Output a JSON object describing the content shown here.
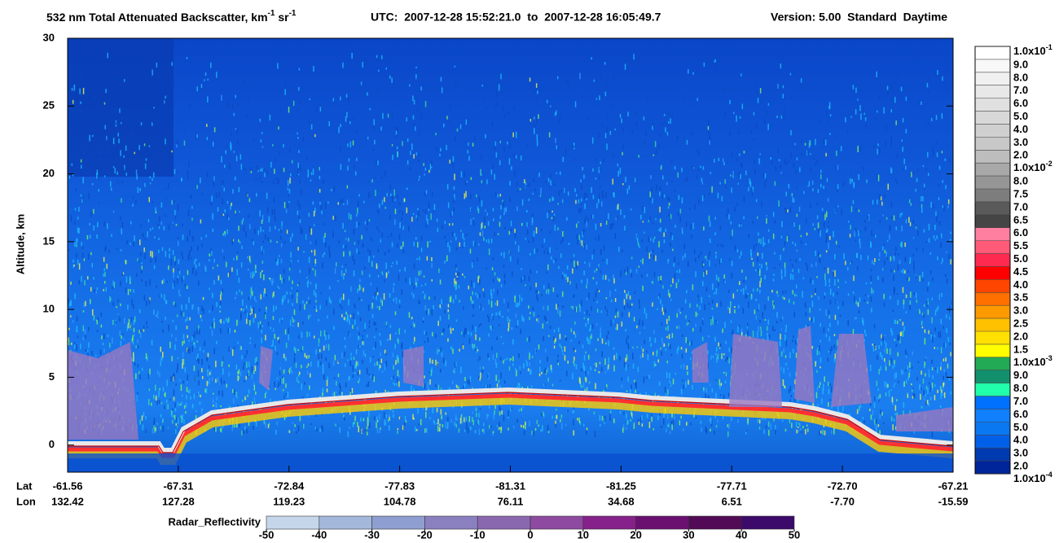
{
  "chart_data": {
    "type": "curtain",
    "title": [
      "532 nm Total Attenuated Backscatter, km",
      "-1",
      " sr",
      "-1"
    ],
    "time_range": "UTC:  2007-12-28 15:52:21.0  to  2007-12-28 16:05:49.7",
    "version": "Version: 5.00  Standard  Daytime",
    "ylabel": "Altitude, km",
    "ylim": [
      -2,
      30
    ],
    "yticks": [
      0,
      5,
      10,
      15,
      20,
      25,
      30
    ],
    "row_labels": [
      "Lat",
      "Lon"
    ],
    "lat": [
      "-61.56",
      "-67.31",
      "-72.84",
      "-77.83",
      "-81.31",
      "-81.25",
      "-77.71",
      "-72.70",
      "-67.21"
    ],
    "lon": [
      "132.42",
      "127.28",
      "119.23",
      "104.78",
      "76.11",
      "34.68",
      "6.51",
      "-7.70",
      "-15.59"
    ],
    "colorbar": {
      "labels": [
        {
          "base": "1.0x10",
          "exp": "-1"
        },
        "9.0",
        "8.0",
        "7.0",
        "6.0",
        "5.0",
        "4.0",
        "3.0",
        "2.0",
        {
          "base": "1.0x10",
          "exp": "-2"
        },
        "8.0",
        "7.5",
        "7.0",
        "6.5",
        "6.0",
        "5.5",
        "5.0",
        "4.5",
        "4.0",
        "3.5",
        "3.0",
        "2.5",
        "2.0",
        "1.5",
        {
          "base": "1.0x10",
          "exp": "-3"
        },
        "9.0",
        "8.0",
        "7.0",
        "6.0",
        "5.0",
        "4.0",
        "3.0",
        "2.0",
        {
          "base": "1.0x10",
          "exp": "-4"
        }
      ],
      "colors": [
        "#ffffff",
        "#f8f8f8",
        "#f0f0f0",
        "#e8e8e8",
        "#e0e0e0",
        "#d8d8d8",
        "#d0d0d0",
        "#c8c8c8",
        "#bdbdbd",
        "#a8a8a8",
        "#969696",
        "#7d7d7d",
        "#5a5a5a",
        "#454545",
        "#ff7fa0",
        "#ff5a78",
        "#ff2a50",
        "#ff0000",
        "#ff4500",
        "#ff7000",
        "#ff9900",
        "#ffc000",
        "#ffe000",
        "#ffff00",
        "#22aa55",
        "#12906e",
        "#22ffaa",
        "#0070ff",
        "#1080ff",
        "#0a78f0",
        "#0060e8",
        "#003ab0",
        "#00259a"
      ]
    },
    "radar_colorbar": {
      "label": "Radar_Reflectivity",
      "lim": [
        -50,
        50
      ],
      "ticks": [
        -50,
        -40,
        -30,
        -20,
        -10,
        0,
        10,
        20,
        30,
        40,
        50
      ],
      "colors": [
        "#c6d6ea",
        "#a4b8dc",
        "#8f9ed0",
        "#8a80c0",
        "#8a68b0",
        "#8e4aa0",
        "#86208a",
        "#6a1070",
        "#520a56",
        "#3c0a6a"
      ]
    }
  }
}
